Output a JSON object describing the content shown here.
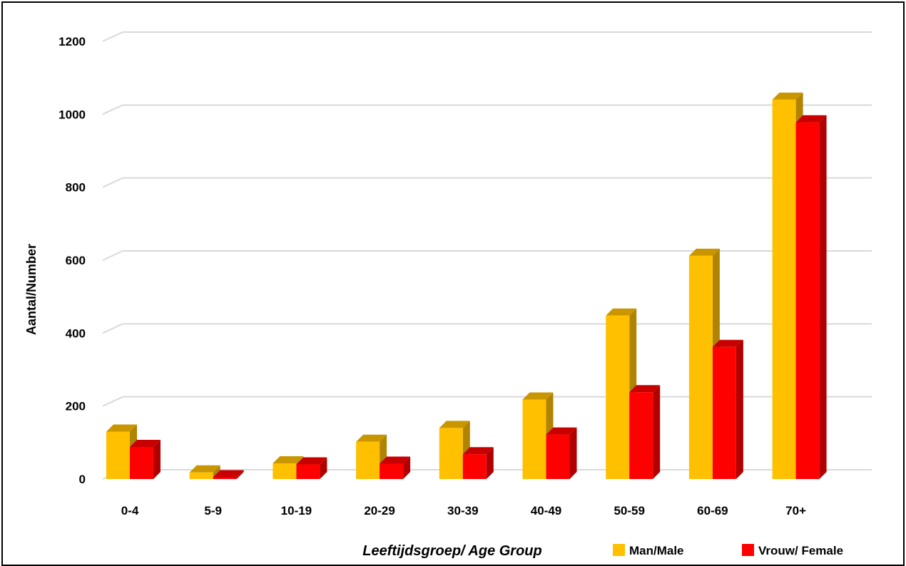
{
  "chart_data": {
    "type": "bar",
    "categories": [
      "0-4",
      "5-9",
      "10-19",
      "20-29",
      "30-39",
      "40-49",
      "50-59",
      "60-69",
      "70+"
    ],
    "series": [
      {
        "name": "Man/Male",
        "values": [
          130,
          18,
          43,
          102,
          140,
          218,
          448,
          612,
          1040
        ],
        "color": "#FFC000"
      },
      {
        "name": "Vrouw/ Female",
        "values": [
          88,
          5,
          40,
          42,
          68,
          122,
          238,
          362,
          978
        ],
        "color": "#FF0000"
      }
    ],
    "xlabel": "Leeftijdsgroep/ Age Group",
    "ylabel": "Aantal/Number",
    "ylim": [
      0,
      1200
    ],
    "yticks": [
      0,
      200,
      400,
      600,
      800,
      1000,
      1200
    ],
    "grid": true,
    "legend": "bottom-right",
    "style": "3d-clustered-column"
  }
}
